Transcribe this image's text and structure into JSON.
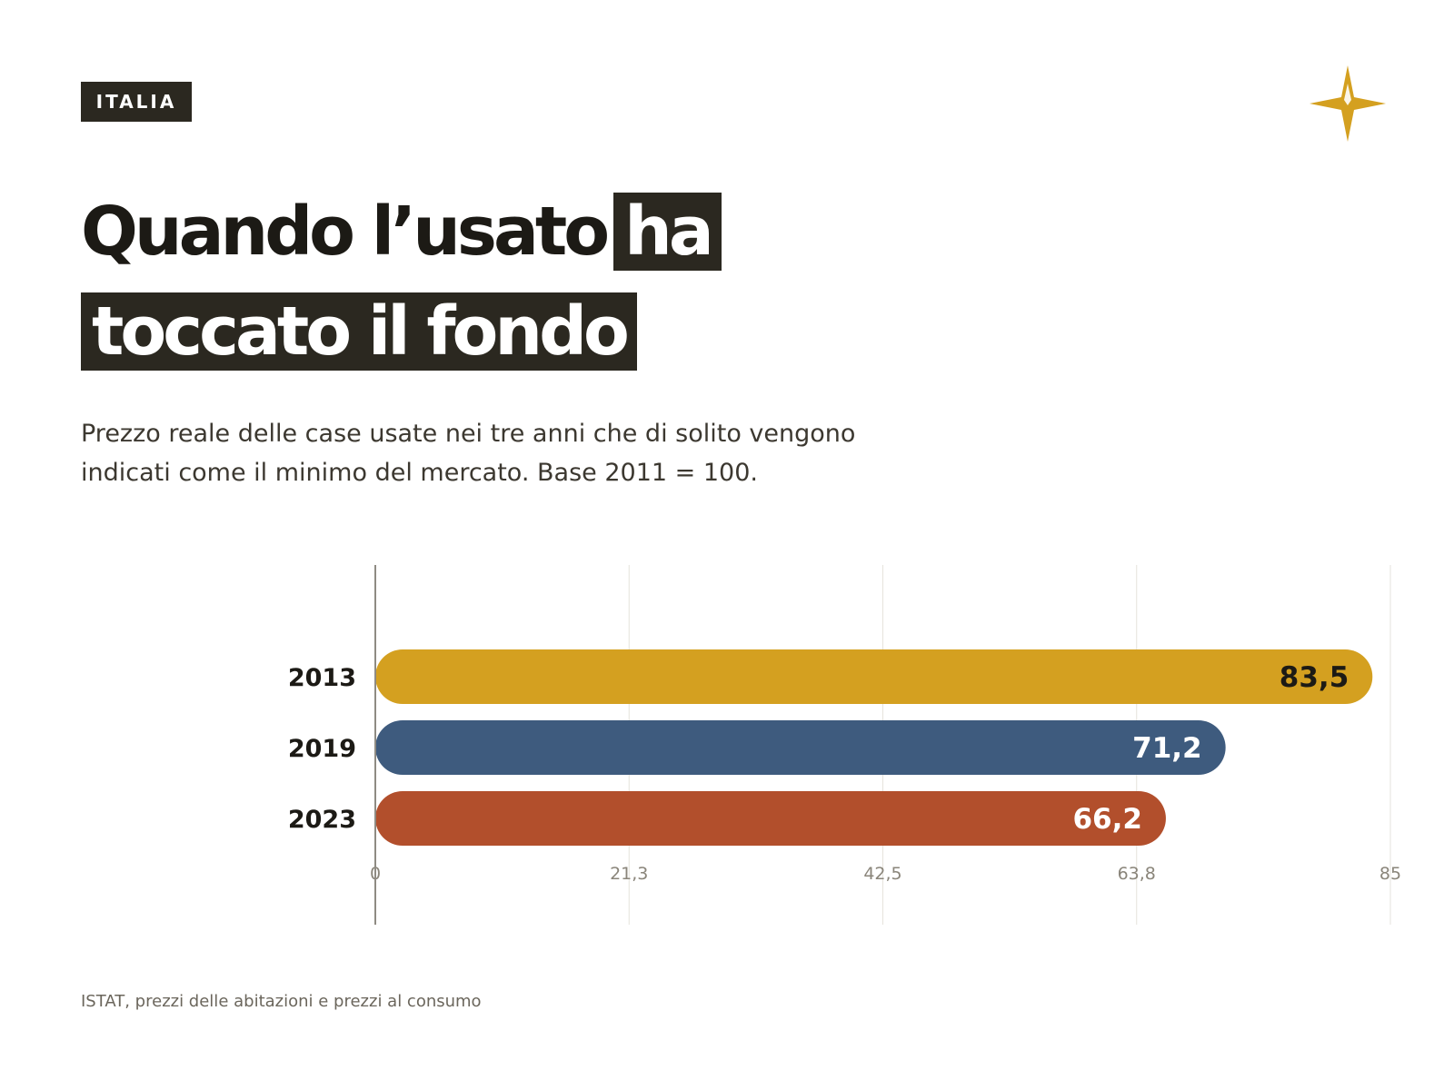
{
  "tag": "ITALIA",
  "title": {
    "line1_plain": "Quando l’usato",
    "line1_highlight": "ha",
    "line2_highlight": "toccato il fondo"
  },
  "subtitle": "Prezzo reale delle case usate nei tre anni che di solito vengono indicati come il minimo del mercato. Base 2011 = 100.",
  "source": "ISTAT, prezzi delle abitazioni e prezzi al consumo",
  "logo_icon": "compass-star-icon",
  "colors": {
    "accent": "#d4a020",
    "dark": "#2b2820"
  },
  "chart_data": {
    "type": "bar",
    "orientation": "horizontal",
    "categories": [
      "2013",
      "2019",
      "2023"
    ],
    "values": [
      83.5,
      71.2,
      66.2
    ],
    "value_labels": [
      "83,5",
      "71,2",
      "66,2"
    ],
    "colors": [
      "#d4a020",
      "#3e5b7e",
      "#b24f2c"
    ],
    "label_colors": [
      "#1c1a15",
      "#ffffff",
      "#ffffff"
    ],
    "xlim": [
      0,
      85
    ],
    "xticks": [
      0,
      21.25,
      42.5,
      63.75,
      85
    ],
    "xtick_labels": [
      "0",
      "21,3",
      "42,5",
      "63,8",
      "85"
    ],
    "grid": true
  }
}
